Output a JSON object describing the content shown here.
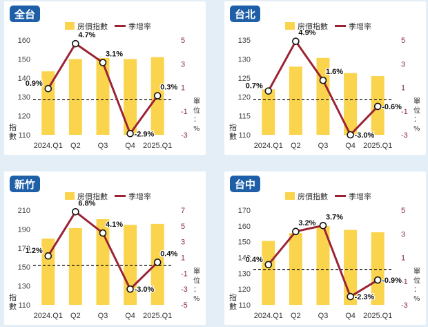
{
  "chart_data": [
    {
      "type": "bar",
      "title": "全台",
      "categories": [
        "2024.Q1",
        "Q2",
        "Q3",
        "Q4",
        "2025.Q1"
      ],
      "ylim": [
        110,
        160
      ],
      "yticks": [
        110,
        120,
        130,
        140,
        150,
        160
      ],
      "y2lim": [
        -3,
        5
      ],
      "y2ticks": [
        "5",
        "3",
        "1",
        "-1",
        "-3"
      ],
      "baseline_y2": 0,
      "ylabel": "指數",
      "y2label": "單位：%",
      "legend": [
        "房價指數",
        "季增率"
      ],
      "series": [
        {
          "name": "房價指數",
          "type": "bar",
          "values": [
            143.5,
            150,
            150.5,
            150,
            151
          ]
        },
        {
          "name": "季增率",
          "type": "line",
          "values": [
            0.9,
            4.7,
            3.1,
            -2.9,
            0.3
          ],
          "labels": [
            "0.9%",
            "4.7%",
            "3.1%",
            "-2.9%",
            "0.3%"
          ]
        }
      ]
    },
    {
      "type": "bar",
      "title": "台北",
      "categories": [
        "2024.Q1",
        "Q2",
        "Q3",
        "Q4",
        "2025.Q1"
      ],
      "ylim": [
        110,
        135
      ],
      "yticks": [
        110,
        115,
        120,
        125,
        130,
        135
      ],
      "y2lim": [
        -3,
        5
      ],
      "y2ticks": [
        "5",
        "3",
        "1",
        "-1",
        "-3"
      ],
      "baseline_y2": 0,
      "ylabel": "指數",
      "y2label": "單位：%",
      "legend": [
        "房價指數",
        "季增率"
      ],
      "series": [
        {
          "name": "房價指數",
          "type": "bar",
          "values": [
            122,
            128,
            130.3,
            126.3,
            125.5
          ]
        },
        {
          "name": "季增率",
          "type": "line",
          "values": [
            0.7,
            4.9,
            1.6,
            -3.0,
            -0.6
          ],
          "labels": [
            "0.7%",
            "4.9%",
            "1.6%",
            "-3.0%",
            "-0.6%"
          ]
        }
      ]
    },
    {
      "type": "bar",
      "title": "新竹",
      "categories": [
        "2024.Q1",
        "Q2",
        "Q3",
        "Q4",
        "2025.Q1"
      ],
      "ylim": [
        110,
        210
      ],
      "yticks": [
        110,
        130,
        150,
        170,
        190,
        210
      ],
      "y2lim": [
        -5,
        7
      ],
      "y2ticks": [
        "7",
        "5",
        "3",
        "1",
        "-1",
        "-3",
        "-5"
      ],
      "baseline_y2": 0,
      "ylabel": "指數",
      "y2label": "單位：%",
      "legend": [
        "房價指數",
        "季增率"
      ],
      "series": [
        {
          "name": "房價指數",
          "type": "bar",
          "values": [
            180,
            191,
            200.5,
            194.5,
            195.5
          ]
        },
        {
          "name": "季增率",
          "type": "line",
          "values": [
            1.2,
            6.8,
            4.1,
            -3.0,
            0.4
          ],
          "labels": [
            "1.2%",
            "6.8%",
            "4.1%",
            "-3.0%",
            "0.4%"
          ]
        }
      ]
    },
    {
      "type": "bar",
      "title": "台中",
      "categories": [
        "2024.Q1",
        "Q2",
        "Q3",
        "Q4",
        "2025.Q1"
      ],
      "ylim": [
        110,
        170
      ],
      "yticks": [
        110,
        120,
        130,
        140,
        150,
        160,
        170
      ],
      "y2lim": [
        -3,
        5
      ],
      "y2ticks": [
        "5",
        "3",
        "1",
        "-1",
        "-3"
      ],
      "baseline_y2": 0,
      "ylabel": "指數",
      "y2label": "單位：%",
      "legend": [
        "房價指數",
        "季增率"
      ],
      "series": [
        {
          "name": "房價指數",
          "type": "bar",
          "values": [
            150.5,
            155.5,
            160,
            157.5,
            156
          ]
        },
        {
          "name": "季增率",
          "type": "line",
          "values": [
            0.4,
            3.2,
            3.7,
            -2.3,
            -0.9
          ],
          "labels": [
            "0.4%",
            "3.2%",
            "3.7%",
            "-2.3%",
            "-0.9%"
          ]
        }
      ]
    }
  ],
  "colors": {
    "bar": "#fbd44d",
    "line": "#9b2335",
    "right_axis": "#8b2a3a",
    "tag": "#1e5fa8",
    "panel_bg": "#ffffff",
    "page_bg": "#e3eef6"
  }
}
